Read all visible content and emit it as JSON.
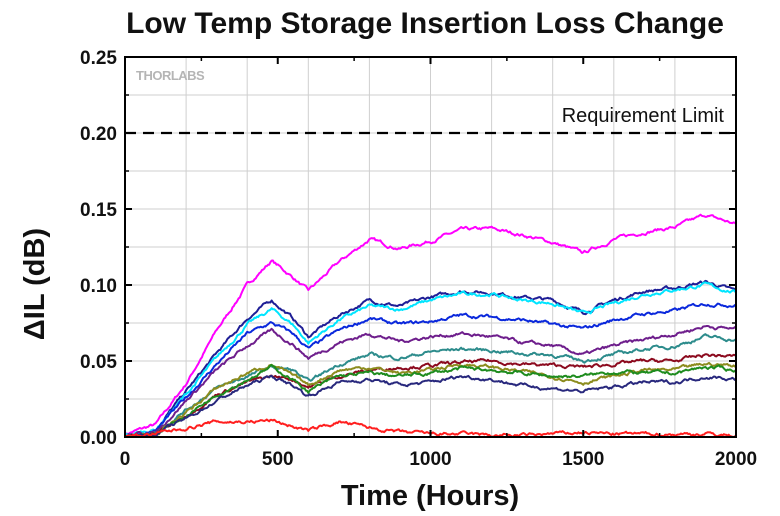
{
  "chart_data": {
    "type": "line",
    "title": "Low Temp Storage Insertion Loss Change",
    "xlabel": "Time (Hours)",
    "ylabel": "ΔIL (dB)",
    "xlim": [
      0,
      2000
    ],
    "ylim": [
      0,
      0.25
    ],
    "x_ticks": [
      "0",
      "500",
      "1000",
      "1500",
      "2000"
    ],
    "y_ticks": [
      "0.00",
      "0.05",
      "0.10",
      "0.15",
      "0.20",
      "0.25"
    ],
    "grid": true,
    "logo": "THORLABS",
    "annotation": "Requirement Limit",
    "requirement_limit": 0.2,
    "x": [
      0,
      100,
      200,
      300,
      400,
      480,
      550,
      600,
      700,
      800,
      900,
      1000,
      1100,
      1200,
      1300,
      1400,
      1500,
      1600,
      1700,
      1800,
      1900,
      2000
    ],
    "series": [
      {
        "color": "#ff00ff",
        "values": [
          0.002,
          0.008,
          0.035,
          0.07,
          0.1,
          0.116,
          0.105,
          0.096,
          0.115,
          0.13,
          0.124,
          0.129,
          0.136,
          0.137,
          0.133,
          0.128,
          0.121,
          0.13,
          0.135,
          0.138,
          0.146,
          0.14
        ]
      },
      {
        "color": "#1e1e96",
        "values": [
          0.001,
          0.005,
          0.03,
          0.055,
          0.078,
          0.09,
          0.078,
          0.066,
          0.08,
          0.09,
          0.086,
          0.092,
          0.096,
          0.095,
          0.092,
          0.09,
          0.082,
          0.09,
          0.096,
          0.098,
          0.102,
          0.096
        ]
      },
      {
        "color": "#00e5ff",
        "values": [
          0.001,
          0.005,
          0.028,
          0.052,
          0.074,
          0.084,
          0.074,
          0.062,
          0.077,
          0.086,
          0.084,
          0.09,
          0.094,
          0.094,
          0.09,
          0.088,
          0.081,
          0.088,
          0.094,
          0.097,
          0.1,
          0.095
        ]
      },
      {
        "color": "#0a28dc",
        "values": [
          0.001,
          0.004,
          0.026,
          0.048,
          0.068,
          0.075,
          0.068,
          0.058,
          0.07,
          0.078,
          0.074,
          0.076,
          0.08,
          0.079,
          0.077,
          0.074,
          0.071,
          0.077,
          0.081,
          0.083,
          0.088,
          0.087
        ]
      },
      {
        "color": "#6e1e8c",
        "values": [
          0.001,
          0.003,
          0.024,
          0.044,
          0.06,
          0.07,
          0.061,
          0.052,
          0.062,
          0.068,
          0.063,
          0.066,
          0.068,
          0.066,
          0.062,
          0.06,
          0.054,
          0.06,
          0.064,
          0.068,
          0.073,
          0.071
        ]
      },
      {
        "color": "#2d8c8c",
        "values": [
          0.0,
          0.003,
          0.018,
          0.032,
          0.04,
          0.046,
          0.044,
          0.036,
          0.048,
          0.054,
          0.052,
          0.056,
          0.058,
          0.057,
          0.055,
          0.054,
          0.05,
          0.054,
          0.058,
          0.06,
          0.066,
          0.064
        ]
      },
      {
        "color": "#8c0a1e",
        "values": [
          0.0,
          0.002,
          0.014,
          0.028,
          0.036,
          0.04,
          0.038,
          0.033,
          0.04,
          0.044,
          0.046,
          0.047,
          0.049,
          0.05,
          0.048,
          0.047,
          0.046,
          0.048,
          0.05,
          0.05,
          0.054,
          0.053
        ]
      },
      {
        "color": "#8c8c1e",
        "values": [
          0.0,
          0.002,
          0.016,
          0.032,
          0.042,
          0.048,
          0.04,
          0.034,
          0.044,
          0.046,
          0.042,
          0.044,
          0.048,
          0.046,
          0.043,
          0.04,
          0.036,
          0.04,
          0.044,
          0.044,
          0.048,
          0.047
        ]
      },
      {
        "color": "#1e8c1e",
        "values": [
          0.0,
          0.002,
          0.014,
          0.028,
          0.038,
          0.046,
          0.038,
          0.03,
          0.04,
          0.042,
          0.04,
          0.042,
          0.045,
          0.044,
          0.042,
          0.04,
          0.04,
          0.043,
          0.042,
          0.042,
          0.046,
          0.044
        ]
      },
      {
        "color": "#28287d",
        "values": [
          0.0,
          0.002,
          0.012,
          0.024,
          0.034,
          0.04,
          0.034,
          0.027,
          0.036,
          0.038,
          0.034,
          0.036,
          0.04,
          0.038,
          0.034,
          0.032,
          0.03,
          0.033,
          0.036,
          0.036,
          0.04,
          0.038
        ]
      },
      {
        "color": "#ff1e1e",
        "values": [
          0.0,
          0.002,
          0.006,
          0.01,
          0.01,
          0.011,
          0.007,
          0.004,
          0.01,
          0.006,
          0.003,
          0.002,
          0.002,
          0.001,
          0.001,
          0.002,
          0.003,
          0.002,
          0.002,
          0.002,
          0.002,
          0.001
        ]
      }
    ]
  }
}
